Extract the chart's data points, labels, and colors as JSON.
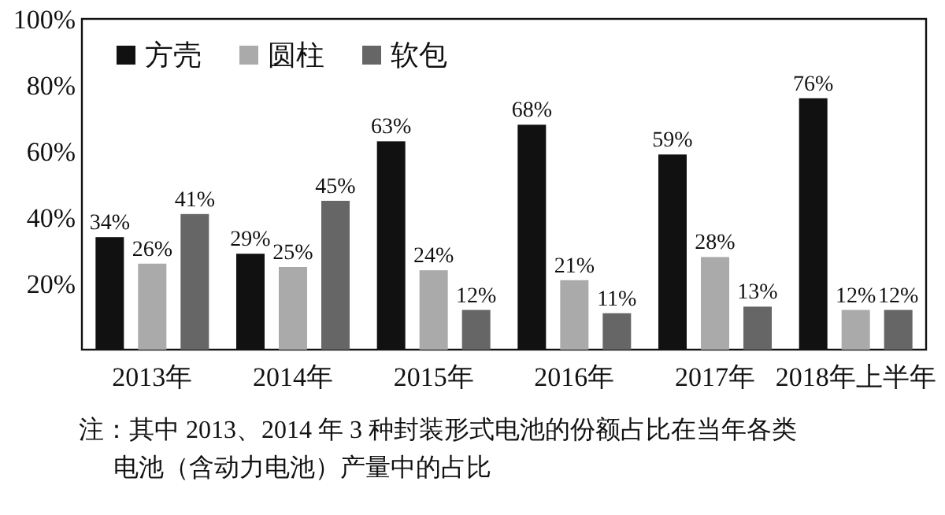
{
  "chart_data": {
    "type": "bar",
    "categories": [
      "2013年",
      "2014年",
      "2015年",
      "2016年",
      "2017年",
      "2018年上半年"
    ],
    "series": [
      {
        "name": "方壳",
        "color": "#111111",
        "values": [
          34,
          29,
          63,
          68,
          59,
          76
        ],
        "value_labels": [
          "34%",
          "29%",
          "63%",
          "68%",
          "59%",
          "76%"
        ]
      },
      {
        "name": "圆柱",
        "color": "#aaaaaa",
        "values": [
          26,
          25,
          24,
          21,
          28,
          12
        ],
        "value_labels": [
          "26%",
          "25%",
          "24%",
          "21%",
          "28%",
          "12%"
        ]
      },
      {
        "name": "软包",
        "color": "#666666",
        "values": [
          41,
          45,
          12,
          11,
          13,
          12
        ],
        "value_labels": [
          "41%",
          "45%",
          "12%",
          "11%",
          "13%",
          "12%"
        ]
      }
    ],
    "ylim": [
      0,
      100
    ],
    "yticks": [
      {
        "value": 20,
        "label": "20%"
      },
      {
        "value": 40,
        "label": "40%"
      },
      {
        "value": 60,
        "label": "60%"
      },
      {
        "value": 80,
        "label": "80%"
      },
      {
        "value": 100,
        "label": "100%"
      }
    ],
    "legend": "top left",
    "grid": false,
    "annotations": [
      "注：其中 2013、2014 年 3 种封装形式电池的份额占比在当年各类电池（含动力电池）产量中的占比"
    ]
  }
}
